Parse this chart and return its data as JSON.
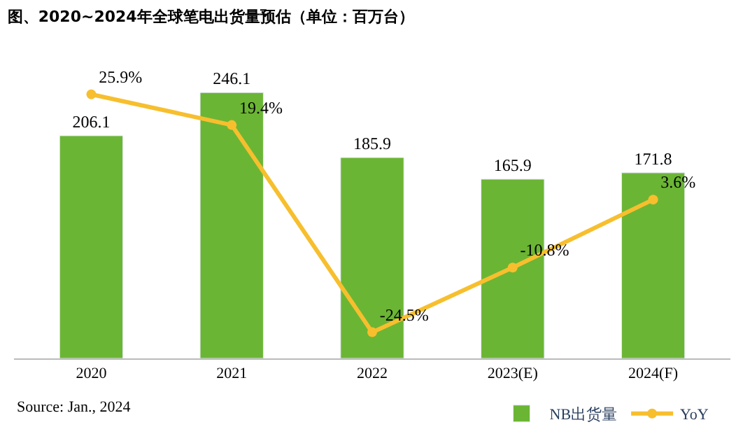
{
  "chart_data": {
    "type": "bar",
    "title": "图、2020~2024年全球笔电出货量预估（单位：百万台）",
    "categories": [
      "2020",
      "2021",
      "2022",
      "2023(E)",
      "2024(F)"
    ],
    "series": [
      {
        "name": "NB出货量",
        "color": "#6bb534",
        "values": [
          206.1,
          246.1,
          185.9,
          165.9,
          171.8
        ]
      },
      {
        "name": "YoY",
        "type": "line",
        "axis": "y2",
        "color": "#f7bf2e",
        "values": [
          25.9,
          19.4,
          -24.5,
          -10.8,
          3.6
        ],
        "value_labels": [
          "25.9%",
          "19.4%",
          "-24.5%",
          "-10.8%",
          "3.6%"
        ]
      }
    ],
    "data_labels": true,
    "tick_labels": "x",
    "legend": "bottom",
    "marker": "circle",
    "line_style": "solid",
    "annotations": [
      "Source: Jan., 2024"
    ]
  }
}
